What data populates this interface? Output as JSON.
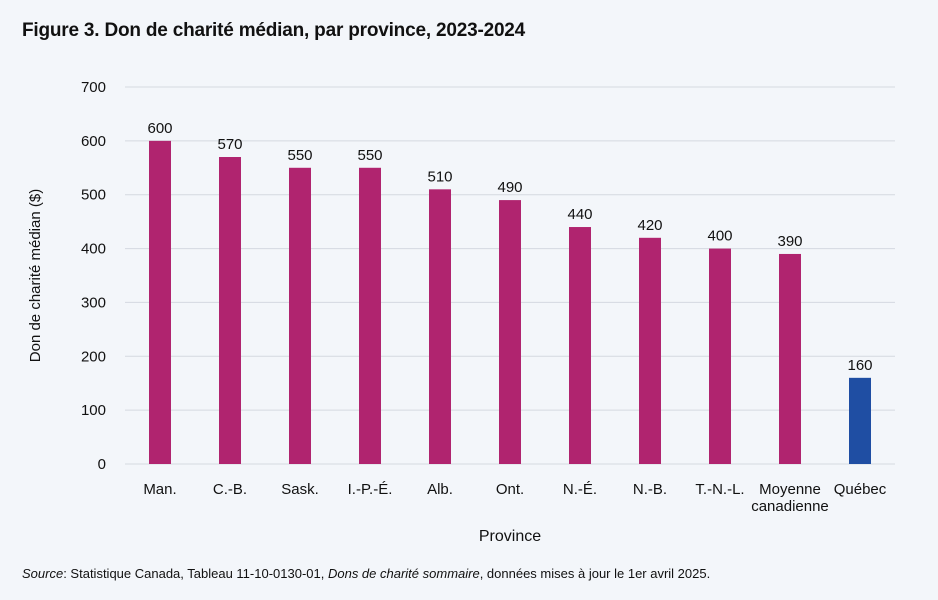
{
  "title": "Figure 3. Don de charité médian, par province, 2023-2024",
  "source": {
    "label": "Source",
    "text_1": ": Statistique Canada, Tableau 11-10-0130-01, ",
    "italic": "Dons de charité sommaire",
    "text_2": ", données mises à jour le 1er avril 2025."
  },
  "colors": {
    "province": "#b0246f",
    "quebec": "#1f4ea3",
    "grid": "#d4d9e0",
    "background": "#f3f6fa"
  },
  "chart_data": {
    "type": "bar",
    "categories": [
      "Man.",
      "C.-B.",
      "Sask.",
      "I.-P.-É.",
      "Alb.",
      "Ont.",
      "N.-É.",
      "N.-B.",
      "T.-N.-L.",
      "Moyenne canadienne",
      "Québec"
    ],
    "category_lines": [
      [
        "Man."
      ],
      [
        "C.-B."
      ],
      [
        "Sask."
      ],
      [
        "I.-P.-É."
      ],
      [
        "Alb."
      ],
      [
        "Ont."
      ],
      [
        "N.-É."
      ],
      [
        "N.-B."
      ],
      [
        "T.-N.-L."
      ],
      [
        "Moyenne",
        "canadienne"
      ],
      [
        "Québec"
      ]
    ],
    "values": [
      600,
      570,
      550,
      550,
      510,
      490,
      440,
      420,
      400,
      390,
      160
    ],
    "highlight": [
      "province",
      "province",
      "province",
      "province",
      "province",
      "province",
      "province",
      "province",
      "province",
      "province",
      "quebec"
    ],
    "xlabel": "Province",
    "ylabel": "Don de charité médian ($)",
    "ylim": [
      0,
      700
    ],
    "yticks": [
      0,
      100,
      200,
      300,
      400,
      500,
      600,
      700
    ],
    "grid": true,
    "legend": "none"
  }
}
